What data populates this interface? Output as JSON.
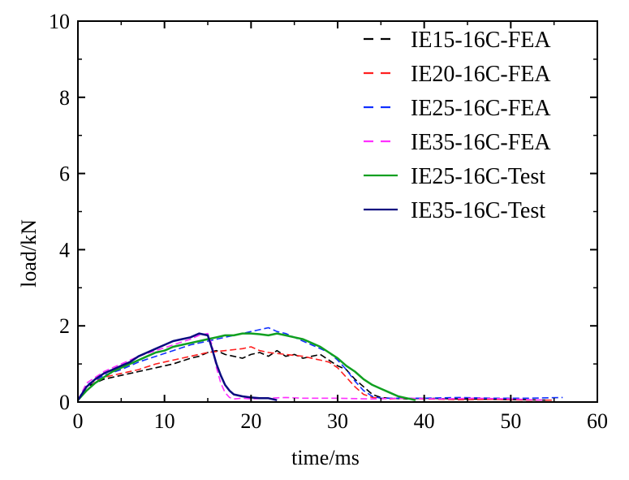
{
  "chart_data": {
    "type": "line",
    "xlabel": "time/ms",
    "ylabel": "load/kN",
    "xlim": [
      0,
      60
    ],
    "ylim": [
      0,
      10
    ],
    "xticks": [
      "0",
      "10",
      "20",
      "30",
      "40",
      "50",
      "60"
    ],
    "yticks": [
      "0",
      "2",
      "4",
      "6",
      "8",
      "10"
    ],
    "grid": false,
    "legend_position": "top-right",
    "series": [
      {
        "name": "IE15-16C-FEA",
        "color": "#000000",
        "dash": "dashed",
        "x": [
          0,
          1,
          3,
          5,
          7,
          9,
          11,
          13,
          14,
          15,
          16,
          17,
          18,
          19,
          20,
          21,
          22,
          23,
          24,
          25,
          26,
          27,
          28,
          29,
          30,
          31,
          32,
          33,
          34,
          35,
          36,
          38,
          40,
          44,
          48,
          52,
          54
        ],
        "y": [
          0.05,
          0.4,
          0.6,
          0.7,
          0.8,
          0.9,
          1.0,
          1.15,
          1.2,
          1.3,
          1.35,
          1.25,
          1.2,
          1.15,
          1.25,
          1.3,
          1.2,
          1.35,
          1.2,
          1.25,
          1.15,
          1.2,
          1.25,
          1.1,
          0.95,
          0.85,
          0.6,
          0.4,
          0.2,
          0.12,
          0.1,
          0.08,
          0.1,
          0.08,
          0.07,
          0.06,
          0.05
        ]
      },
      {
        "name": "IE20-16C-FEA",
        "color": "#ff2020",
        "dash": "dashed",
        "x": [
          0,
          1,
          3,
          5,
          7,
          9,
          11,
          13,
          15,
          17,
          19,
          20,
          21,
          22,
          24,
          26,
          28,
          29,
          30,
          31,
          32,
          33,
          34,
          35,
          36,
          38,
          40,
          44,
          48,
          52,
          55
        ],
        "y": [
          0.05,
          0.45,
          0.65,
          0.75,
          0.85,
          1.0,
          1.1,
          1.2,
          1.3,
          1.35,
          1.4,
          1.45,
          1.35,
          1.3,
          1.25,
          1.2,
          1.1,
          1.05,
          0.9,
          0.65,
          0.4,
          0.2,
          0.12,
          0.1,
          0.08,
          0.1,
          0.08,
          0.06,
          0.07,
          0.05,
          0.05
        ]
      },
      {
        "name": "IE25-16C-FEA",
        "color": "#1030ff",
        "dash": "dashed",
        "x": [
          0,
          1,
          3,
          5,
          7,
          9,
          11,
          13,
          15,
          17,
          19,
          20,
          21,
          22,
          23,
          24,
          25,
          26,
          27,
          28,
          29,
          30,
          31,
          32,
          33,
          34,
          35,
          36,
          38,
          40,
          44,
          48,
          52,
          56
        ],
        "y": [
          0.05,
          0.45,
          0.7,
          0.85,
          1.05,
          1.2,
          1.35,
          1.5,
          1.6,
          1.7,
          1.8,
          1.85,
          1.9,
          1.95,
          1.85,
          1.8,
          1.7,
          1.6,
          1.5,
          1.4,
          1.3,
          1.1,
          0.85,
          0.55,
          0.3,
          0.15,
          0.1,
          0.1,
          0.1,
          0.1,
          0.12,
          0.1,
          0.1,
          0.12
        ]
      },
      {
        "name": "IE35-16C-FEA",
        "color": "#ff30ff",
        "dash": "dashed",
        "x": [
          0,
          1,
          3,
          5,
          7,
          9,
          11,
          13,
          14,
          15,
          15.5,
          16,
          16.5,
          17,
          17.5,
          18,
          19,
          20,
          22,
          24,
          26,
          28,
          30,
          34,
          38,
          42,
          46,
          50,
          54
        ],
        "y": [
          0.05,
          0.5,
          0.8,
          1.0,
          1.2,
          1.35,
          1.5,
          1.65,
          1.75,
          1.8,
          1.5,
          0.9,
          0.5,
          0.25,
          0.12,
          0.08,
          0.1,
          0.08,
          0.1,
          0.12,
          0.1,
          0.1,
          0.1,
          0.08,
          0.1,
          0.08,
          0.1,
          0.08,
          0.05
        ]
      },
      {
        "name": "IE25-16C-Test",
        "color": "#10a020",
        "dash": "solid",
        "x": [
          0,
          1,
          2,
          3,
          4,
          5,
          6,
          7,
          8,
          9,
          10,
          11,
          12,
          13,
          14,
          15,
          16,
          17,
          18,
          19,
          20,
          21,
          22,
          23,
          24,
          25,
          26,
          27,
          28,
          29,
          30,
          31,
          32,
          33,
          34,
          35,
          36,
          37,
          38,
          39
        ],
        "y": [
          0.05,
          0.3,
          0.5,
          0.65,
          0.8,
          0.9,
          1.0,
          1.1,
          1.2,
          1.3,
          1.35,
          1.45,
          1.5,
          1.55,
          1.6,
          1.65,
          1.7,
          1.75,
          1.75,
          1.8,
          1.8,
          1.78,
          1.75,
          1.8,
          1.75,
          1.7,
          1.65,
          1.55,
          1.45,
          1.3,
          1.15,
          0.95,
          0.8,
          0.6,
          0.45,
          0.35,
          0.25,
          0.15,
          0.1,
          0.05
        ]
      },
      {
        "name": "IE35-16C-Test",
        "color": "#0a0a80",
        "dash": "solid",
        "x": [
          0,
          1,
          2,
          3,
          4,
          5,
          6,
          7,
          8,
          9,
          10,
          11,
          12,
          13,
          14,
          15,
          15.5,
          16,
          16.5,
          17,
          17.5,
          18,
          19,
          20,
          21,
          22,
          23
        ],
        "y": [
          0.05,
          0.4,
          0.6,
          0.75,
          0.85,
          0.95,
          1.05,
          1.2,
          1.3,
          1.4,
          1.5,
          1.6,
          1.65,
          1.7,
          1.8,
          1.75,
          1.4,
          1.0,
          0.7,
          0.45,
          0.3,
          0.2,
          0.15,
          0.12,
          0.1,
          0.1,
          0.05
        ]
      }
    ]
  }
}
